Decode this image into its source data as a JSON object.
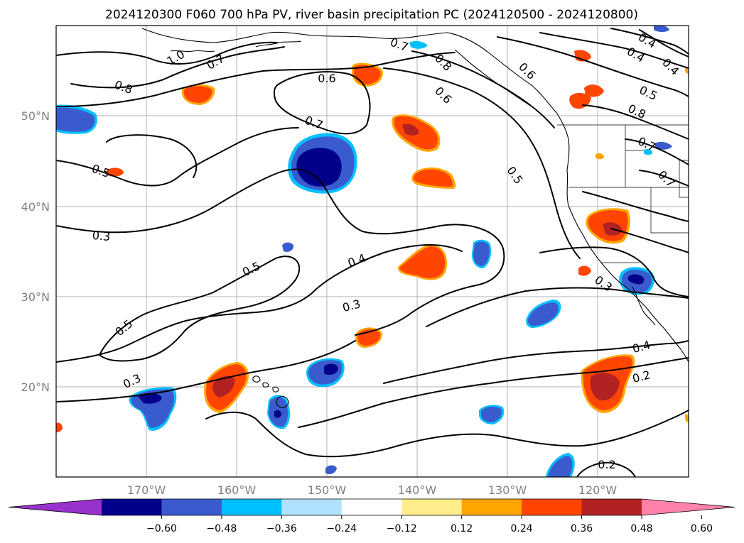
{
  "title": "2024120300 F060 700 hPa PV, river basin precipitation PC (2024120500 - 2024120800)",
  "map": {
    "lon_range": [
      -180,
      -110
    ],
    "lat_range": [
      10,
      60
    ],
    "gridlines": true,
    "longitude_labels": [
      "170°W",
      "160°W",
      "150°W",
      "140°W",
      "130°W",
      "120°W"
    ],
    "latitude_labels": [
      "50°N",
      "40°N",
      "30°N",
      "20°N"
    ]
  },
  "contours": {
    "field": "700 hPa PV",
    "color": "#000000",
    "labels": [
      "1.0",
      "0.7",
      "0.8",
      "0.6",
      "0.7",
      "0.5",
      "0.3",
      "0.5",
      "0.4",
      "0.3",
      "0.5",
      "0.3",
      "0.7",
      "0.8",
      "0.6",
      "0.6",
      "0.5",
      "0.4",
      "0.4",
      "0.4",
      "0.5",
      "0.8",
      "0.7",
      "0.7",
      "0.3",
      "0.4",
      "0.2",
      "0.2"
    ]
  },
  "colorbar": {
    "extend": "both",
    "colors": [
      "#9932cc",
      "#00008b",
      "#3a5bcd",
      "#00bfff",
      "#b0e2ff",
      "#ffffff",
      "#ffec8b",
      "#ffa500",
      "#ff4500",
      "#b22222",
      "#ff82ab"
    ],
    "tick_labels": [
      "−0.60",
      "−0.48",
      "−0.36",
      "−0.24",
      "−0.12",
      "0.12",
      "0.24",
      "0.36",
      "0.48",
      "0.60"
    ]
  }
}
